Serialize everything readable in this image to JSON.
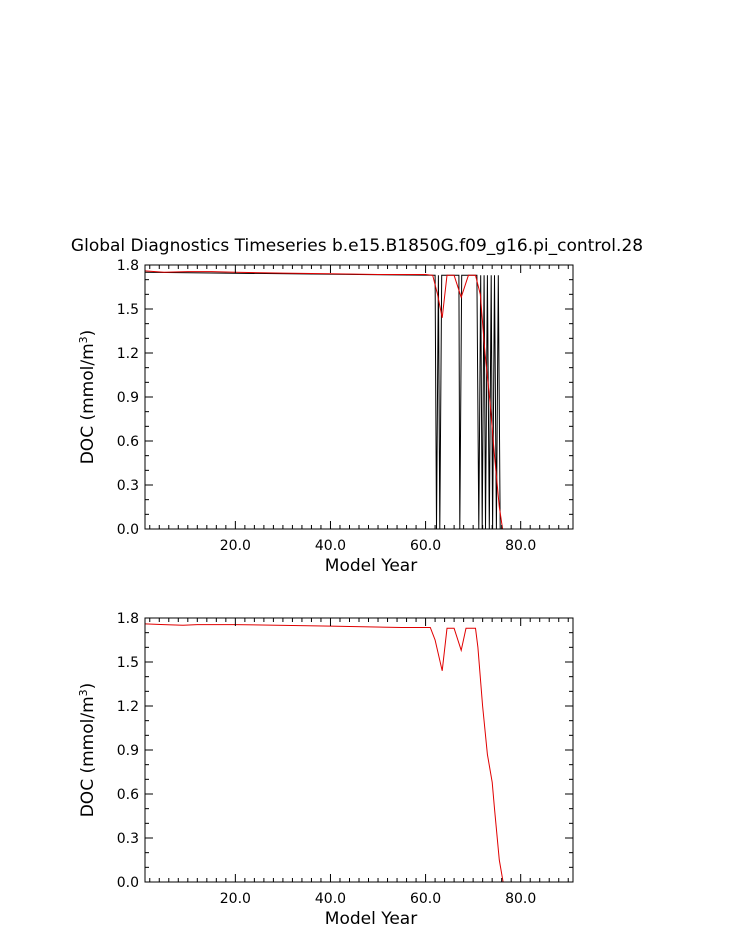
{
  "page": {
    "title": "Global Diagnostics Timeseries b.e15.B1850G.f09_g16.pi_control.28"
  },
  "colors": {
    "monthly": "#000000",
    "annual": "#e00000",
    "background": "#ffffff"
  },
  "chart_data": [
    {
      "type": "line",
      "title": "Global Diagnostics Timeseries b.e15.B1850G.f09_g16.pi_control.28",
      "xlabel": "Model Year",
      "ylabel": "DOC (mmol/m",
      "ylabel_sup": "3",
      "ylabel_close": ")",
      "xlim": [
        1,
        91
      ],
      "ylim": [
        0.0,
        1.8
      ],
      "xticks": [
        "20.0",
        "40.0",
        "60.0",
        "80.0"
      ],
      "yticks": [
        "0.0",
        "0.3",
        "0.6",
        "0.9",
        "1.2",
        "1.5",
        "1.8"
      ],
      "grid": false,
      "series": [
        {
          "color": "#000000",
          "x": [
            1,
            62.0,
            62.3,
            62.7,
            63.0,
            63.4,
            63.8,
            67.0,
            67.2,
            67.6,
            70.8,
            71.2,
            71.6,
            71.9,
            72.3,
            72.6,
            73.0,
            73.4,
            73.8,
            74.1,
            74.5,
            74.9,
            75.3,
            75.7,
            76.2,
            91
          ],
          "y": [
            1.75,
            1.73,
            0.0,
            1.73,
            0.0,
            1.73,
            1.73,
            1.73,
            0.0,
            1.73,
            1.73,
            0.0,
            1.73,
            0.0,
            1.73,
            0.0,
            1.73,
            0.0,
            1.73,
            0.0,
            1.73,
            0.0,
            1.73,
            0.0,
            0.0,
            0.0
          ]
        },
        {
          "color": "#e00000",
          "x": [
            1,
            5,
            10,
            15,
            20,
            30,
            40,
            50,
            55,
            60,
            61.5,
            62.5,
            63.5,
            64.5,
            66,
            67.5,
            69,
            70.5,
            71.5,
            72.5,
            73.5,
            74.5,
            75.5,
            76.2,
            78,
            91
          ],
          "y": [
            1.76,
            1.75,
            1.755,
            1.755,
            1.75,
            1.745,
            1.74,
            1.735,
            1.735,
            1.735,
            1.73,
            1.6,
            1.44,
            1.73,
            1.73,
            1.58,
            1.73,
            1.73,
            1.6,
            1.2,
            0.88,
            0.5,
            0.15,
            0.0,
            0.0,
            0.0
          ]
        }
      ]
    },
    {
      "type": "line",
      "title": "",
      "xlabel": "Model Year",
      "ylabel": "DOC (mmol/m",
      "ylabel_sup": "3",
      "ylabel_close": ")",
      "xlim": [
        1,
        91
      ],
      "ylim": [
        0.0,
        1.8
      ],
      "xticks": [
        "20.0",
        "40.0",
        "60.0",
        "80.0"
      ],
      "yticks": [
        "0.0",
        "0.3",
        "0.6",
        "0.9",
        "1.2",
        "1.5",
        "1.8"
      ],
      "grid": false,
      "series": [
        {
          "color": "#e00000",
          "x": [
            1,
            5,
            9,
            12,
            20,
            40,
            55,
            61,
            62,
            63.5,
            64.5,
            66,
            67.5,
            68.5,
            70.5,
            71,
            72,
            73,
            74,
            74.5,
            75.5,
            76.3
          ],
          "y": [
            1.76,
            1.755,
            1.75,
            1.755,
            1.755,
            1.745,
            1.735,
            1.735,
            1.65,
            1.44,
            1.73,
            1.73,
            1.58,
            1.73,
            1.73,
            1.6,
            1.2,
            0.87,
            0.68,
            0.5,
            0.15,
            0.0
          ]
        }
      ]
    }
  ]
}
